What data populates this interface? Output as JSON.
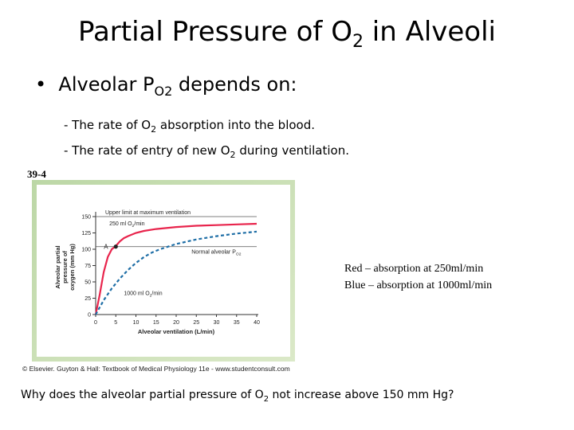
{
  "slide": {
    "title_pre": "Partial Pressure of O",
    "title_sub": "2",
    "title_post": " in Alveoli",
    "bullet_pre": "Alveolar P",
    "bullet_sub": "O2",
    "bullet_post": " depends on:",
    "line1_pre": "- The rate of O",
    "line1_sub": "2",
    "line1_post": " absorption into the blood.",
    "line2_pre": "- The rate of entry of new O",
    "line2_sub": "2",
    "line2_post": " during ventilation.",
    "figure_number": "39-4",
    "credit": "© Elsevier. Guyton & Hall: Textbook of Medical Physiology 11e - www.studentconsult.com",
    "legend_red": "Red – absorption at 250ml/min",
    "legend_blue": "Blue – absorption at 1000ml/min",
    "question_pre": "Why does the alveolar partial pressure of O",
    "question_sub": "2",
    "question_post": " not increase above 150 mm Hg?"
  },
  "chart_data": {
    "type": "line",
    "xlabel": "Alveolar ventilation (L/min)",
    "ylabel": "Alveolar partial pressure of oxygen (mm Hg)",
    "xlim": [
      0,
      40
    ],
    "ylim": [
      0,
      150
    ],
    "xticks": [
      0,
      5,
      10,
      15,
      20,
      25,
      30,
      35,
      40
    ],
    "yticks": [
      0,
      25,
      50,
      75,
      100,
      125,
      150
    ],
    "series": [
      {
        "name": "250 ml O2/min",
        "color": "#e8244c",
        "style": "solid",
        "x": [
          0,
          1,
          2,
          3,
          4,
          5,
          6,
          7,
          8,
          10,
          12,
          15,
          20,
          25,
          30,
          35,
          40
        ],
        "y": [
          0,
          30,
          65,
          88,
          100,
          105,
          112,
          117,
          120,
          125,
          128,
          131,
          134,
          136,
          137,
          138,
          139
        ]
      },
      {
        "name": "1000 ml O2/min",
        "color": "#1e6ea6",
        "style": "dashed",
        "x": [
          0,
          2,
          4,
          6,
          8,
          10,
          12,
          14,
          16,
          18,
          20,
          25,
          30,
          35,
          40
        ],
        "y": [
          0,
          22,
          40,
          55,
          68,
          79,
          88,
          95,
          100,
          104,
          108,
          115,
          120,
          124,
          127
        ]
      }
    ],
    "annotations": {
      "upper_limit": "Upper limit at maximum ventilation",
      "upper_limit_y": 150,
      "normal_label": "Normal alveolar P",
      "normal_label_sub": "O2",
      "normal_y": 104,
      "point_label": "A",
      "point_x": 5,
      "point_y": 104,
      "red_label": "250 ml O",
      "red_label_sub": "2",
      "red_label_post": "/min",
      "blue_label": "1000 ml O",
      "blue_label_sub": "2",
      "blue_label_post": "/min"
    }
  }
}
